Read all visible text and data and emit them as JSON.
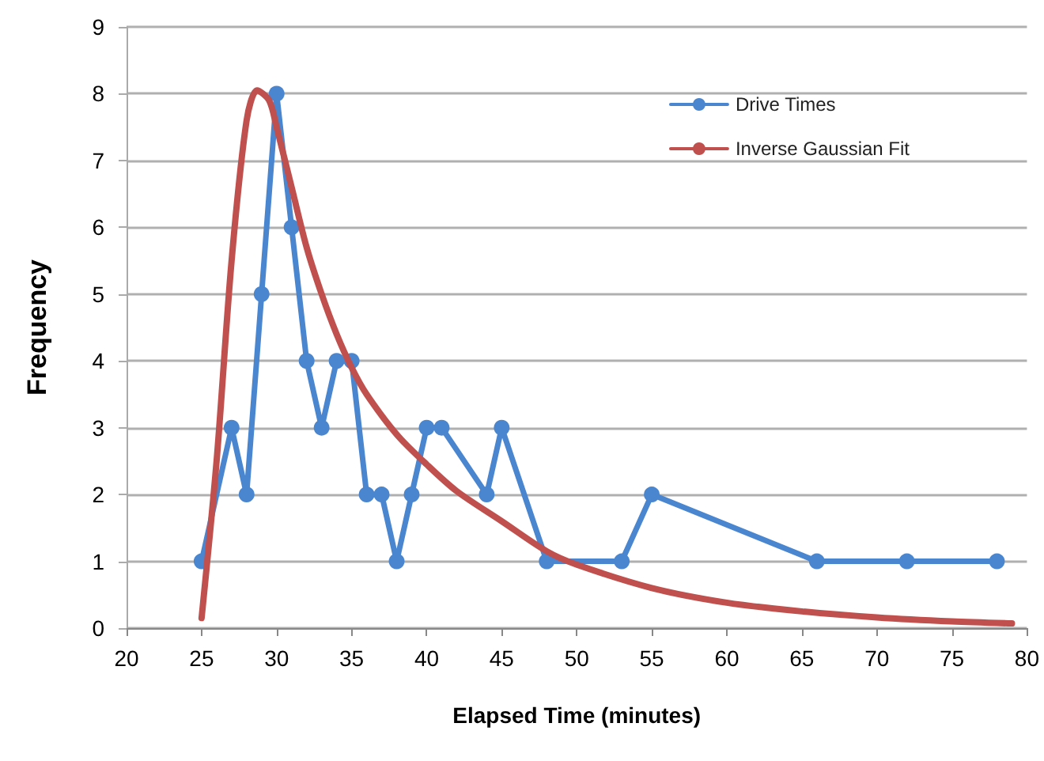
{
  "chart_data": {
    "type": "line",
    "xlabel": "Elapsed Time (minutes)",
    "ylabel": "Frequency",
    "xlim": [
      20,
      80
    ],
    "xticks": [
      20,
      25,
      30,
      35,
      40,
      45,
      50,
      55,
      60,
      65,
      70,
      75,
      80
    ],
    "ylim": [
      0,
      9
    ],
    "yticks": [
      0,
      1,
      2,
      3,
      4,
      5,
      6,
      7,
      8,
      9
    ],
    "grid": "y",
    "legend": "top right",
    "series": [
      {
        "name": "Drive Times",
        "color": "#4a86d0",
        "marker": "circle",
        "x": [
          25,
          27,
          28,
          29,
          30,
          31,
          32,
          33,
          34,
          35,
          36,
          37,
          38,
          39,
          40,
          41,
          44,
          45,
          48,
          53,
          55,
          66,
          72,
          78
        ],
        "values": [
          1,
          3,
          2,
          5,
          8,
          6,
          4,
          3,
          4,
          4,
          2,
          2,
          1,
          2,
          3,
          3,
          2,
          3,
          1,
          1,
          2,
          1,
          1,
          1
        ]
      },
      {
        "name": "Inverse Gaussian Fit",
        "color": "#c0504d",
        "marker": "none",
        "x": [
          25,
          26,
          27,
          28,
          28.7,
          29.5,
          30,
          31,
          32,
          33,
          34,
          35,
          36,
          38,
          40,
          42,
          45,
          48,
          50,
          55,
          60,
          65,
          70,
          75,
          79
        ],
        "values": [
          0.15,
          2.5,
          5.5,
          7.6,
          8.05,
          7.9,
          7.5,
          6.6,
          5.7,
          5.0,
          4.4,
          3.9,
          3.5,
          2.9,
          2.45,
          2.05,
          1.6,
          1.15,
          0.95,
          0.6,
          0.38,
          0.25,
          0.16,
          0.1,
          0.07
        ]
      }
    ]
  }
}
